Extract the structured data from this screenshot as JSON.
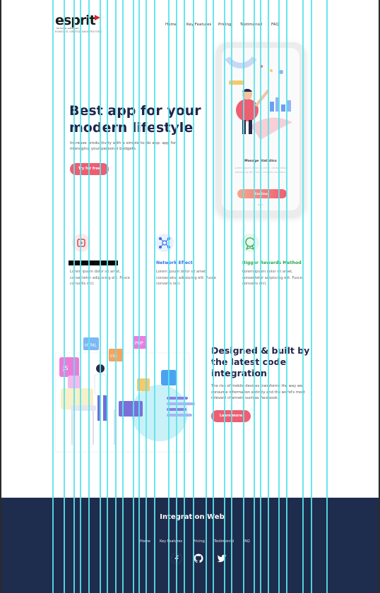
{
  "brand": {
    "name": "esprit",
    "tagline": "Se former autrement",
    "sub": "HONORIS UNITED UNIVERSITIES"
  },
  "nav": {
    "items": [
      "Home",
      "Key Features",
      "Pricing",
      "Testimonial",
      "FAQ"
    ]
  },
  "hero": {
    "title": "Best app for your modern lifestyle",
    "subtitle": "Increase productivity with a simple to-do app. app for managing your personal budgets.",
    "button": "Try for free"
  },
  "phone": {
    "title": "Manage Statistics",
    "text": "Lorem ipsum dolor sit amet, consectetur adipiscing elit. Fusce convallis dui diam.",
    "button": "Continue",
    "link": "Back"
  },
  "features": [
    {
      "title": "Automatic Payouts",
      "text": "Lorem ipsum dolor sit amet, consectetur adipiscing elit. Fusce convallis orci.",
      "color": "#e0252d",
      "icon": "payout-icon"
    },
    {
      "title": "Network Effect",
      "text": "Lorem ipsum dolor sit amet, consectetur adipiscing elit. Fusce convallis orci.",
      "color": "#2d6ef0",
      "icon": "network-icon"
    },
    {
      "title": "Bigger Rewards Method",
      "text": "Lorem ipsum dolor sit amet, consectetur adipiscing elit. Fusce convallis orci.",
      "color": "#2aa84a",
      "icon": "rewards-icon"
    }
  ],
  "integration": {
    "title": "Designed & built by the latest code integration",
    "text": "The rise of mobile devices transforms the way we consume information entirely and the world's most relevant channels such as Facebook.",
    "button": "Learn more",
    "badges": [
      "HTML",
      "PHP",
      "CSS",
      "JS"
    ]
  },
  "footer": {
    "title": "Integration Web",
    "nav": [
      "Home",
      "Key Features",
      "Pricing",
      "Testimonial",
      "FAQ"
    ],
    "social": [
      "facebook-icon",
      "github-icon",
      "twitter-icon"
    ]
  },
  "colors": {
    "accent": "#ef5d71",
    "navy": "#20254a",
    "footer": "#1e2c4d",
    "guide": "#57e3ec"
  }
}
